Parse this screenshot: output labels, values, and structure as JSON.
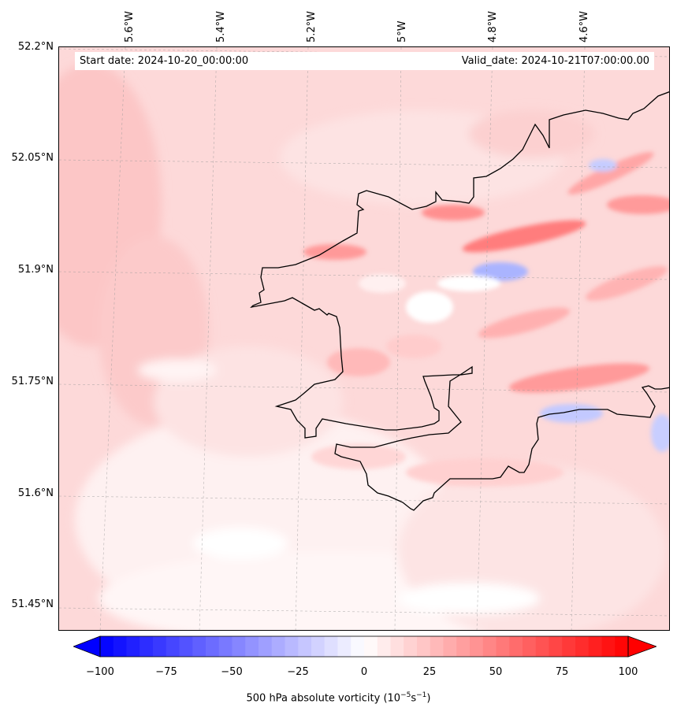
{
  "header": {
    "start_date": "Start date: 2024-10-20_00:00:00",
    "valid_date": "Valid_date: 2024-10-21T07:00:00.00"
  },
  "map": {
    "longitude_labels": [
      "5.6°W",
      "5.4°W",
      "5.2°W",
      "5°W",
      "4.8°W",
      "4.6°W"
    ],
    "latitude_labels": [
      "52.2°N",
      "52.05°N",
      "51.9°N",
      "51.75°N",
      "51.6°N",
      "51.45°N"
    ],
    "extent": {
      "lon_min": -5.75,
      "lon_max": -4.4,
      "lat_min": 51.43,
      "lat_max": 52.2
    },
    "gridlines": true,
    "coastline_color": "#000000"
  },
  "colorbar": {
    "ticks": [
      "−100",
      "−75",
      "−50",
      "−25",
      "0",
      "25",
      "50",
      "75",
      "100"
    ],
    "min": -100,
    "max": 100,
    "extend": "both",
    "colormap": "bwr",
    "low_color": "#0000ff",
    "mid_color": "#ffffff",
    "high_color": "#ff0000",
    "label_main": "500 hPa absolute vorticity (10",
    "label_exp1": "−5",
    "label_unit": "s",
    "label_exp2": "−1",
    "label_close": ")"
  }
}
